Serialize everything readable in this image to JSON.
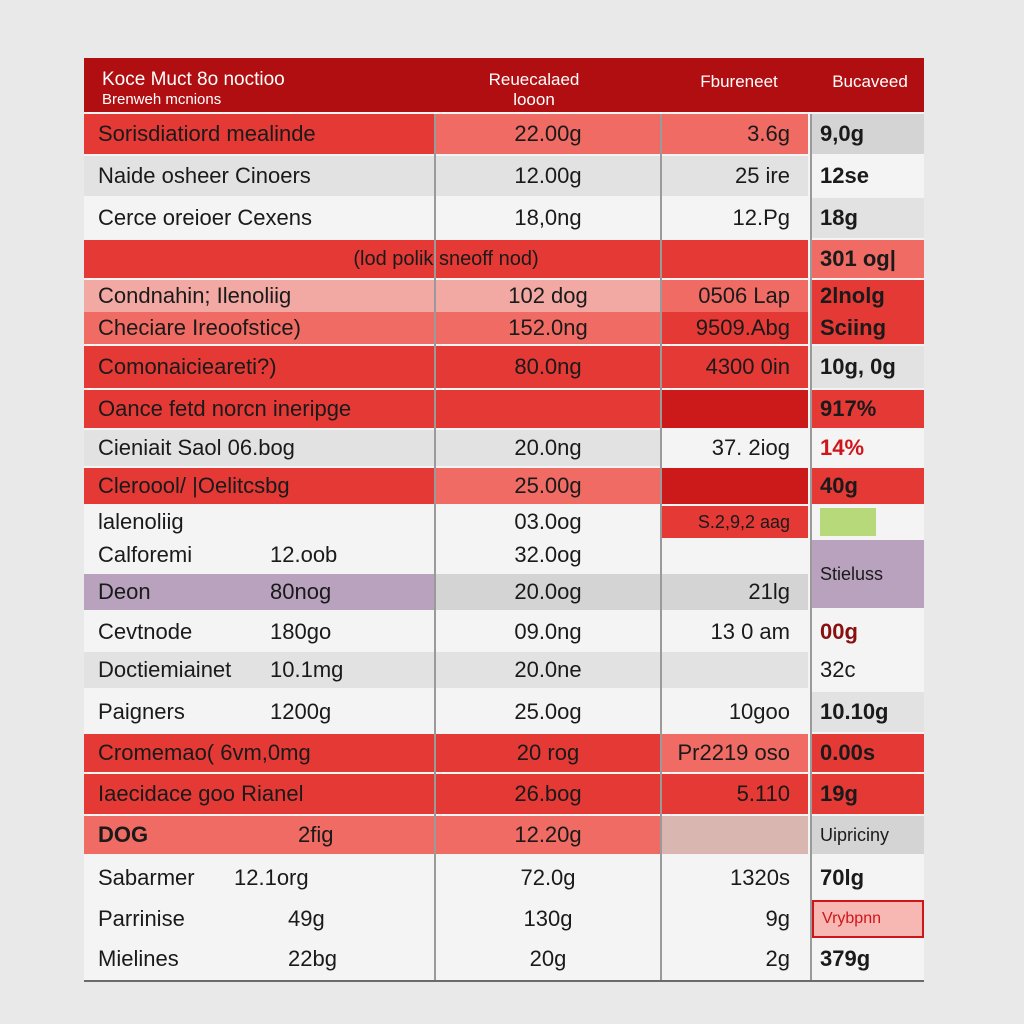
{
  "header": {
    "col1_line1": "Koce Muct 8o noctioo",
    "col1_line2": "Brenweh mcnions",
    "col2_line1": "Reuecalaed",
    "col2_line2": "looon",
    "col3": "Fbureneet",
    "col4": "Bucaveed"
  },
  "rows": [
    {
      "c1": "Sorisdiatiord mealinde",
      "c2": "22.00g",
      "c3": "3.6g",
      "c4": "9,0g"
    },
    {
      "c1": "Naide osheer Cinoers",
      "c2": "12.00g",
      "c3": "25 ire",
      "c4": "12se"
    },
    {
      "c1": "Cerce oreioer Cexens",
      "c2": "18,0ng",
      "c3": "12.Pg",
      "c4": "18g"
    },
    {
      "span": "(lod polik sneoff nod)",
      "c4": "301 og|"
    },
    {
      "c1": "Condnahin; Ilenoliig",
      "c2": "102 dog",
      "c3": "0506 Lap",
      "c4": "2lnolg"
    },
    {
      "c1": "Checiare Ireoofstice)",
      "c2": "152.0ng",
      "c3": "9509.Abg",
      "c4": "Sciing"
    },
    {
      "c1": "Comonaicieareti?)",
      "c2": "80.0ng",
      "c3": "4300 0in",
      "c4": "10g, 0g"
    },
    {
      "span12": "Oance fetd norcn ineripge",
      "c4": "917%"
    },
    {
      "c1": "Cieniait Saol 06.bog",
      "c2": "20.0ng",
      "c3": "37. 2iog",
      "c4": "14%"
    },
    {
      "c1": "Cleroool/ |Oelitcsbg",
      "c2": "25.00g",
      "c3": "",
      "c4": "40g"
    },
    {
      "c1": "lalenoliig",
      "c2": "03.0og",
      "c3": "S.2,9,2 aag",
      "c4": ""
    },
    {
      "c1": "Calforemi",
      "c1b": "12.oob",
      "c2": "32.0og",
      "c3": "",
      "c4": "Stieluss"
    },
    {
      "c1": "Deon",
      "c1b": "80nog",
      "c2": "20.0og",
      "c3": "21lg",
      "c4": ""
    },
    {
      "c1": "Cevtnode",
      "c1b": "180go",
      "c2": "09.0ng",
      "c3": "13 0 am",
      "c4": "00g"
    },
    {
      "c1": "Doctiemiainet",
      "c1b": "10.1mg",
      "c2": "20.0ne",
      "c3": "",
      "c4": "32c"
    },
    {
      "c1": "Paigners",
      "c1b": "1200g",
      "c2": "25.0og",
      "c3": "10goo",
      "c4": "10.10g"
    },
    {
      "c1": "Cromemao( 6vm,0mg",
      "c2": "20 rog",
      "c3": "Pr2219 oso",
      "c4": "0.00s"
    },
    {
      "c1": "Iaecidace goo Rianel",
      "c2": "26.bog",
      "c3": "5.110",
      "c4": "19g"
    },
    {
      "c1": "DOG",
      "c1b": "2fig",
      "c2": "12.20g",
      "c3": "",
      "c4": "Uipriciny"
    },
    {
      "c1": "Sabarmer",
      "c1b": "12.1org",
      "c2": "72.0g",
      "c3": "1320s",
      "c4": "70lg"
    },
    {
      "c1": "Parrinise",
      "c1b": "49g",
      "c2": "130g",
      "c3": "9g",
      "c4": "Vrybpnn"
    },
    {
      "c1": "Mielines",
      "c1b": "22bg",
      "c2": "20g",
      "c3": "2g",
      "c4": "379g"
    }
  ]
}
